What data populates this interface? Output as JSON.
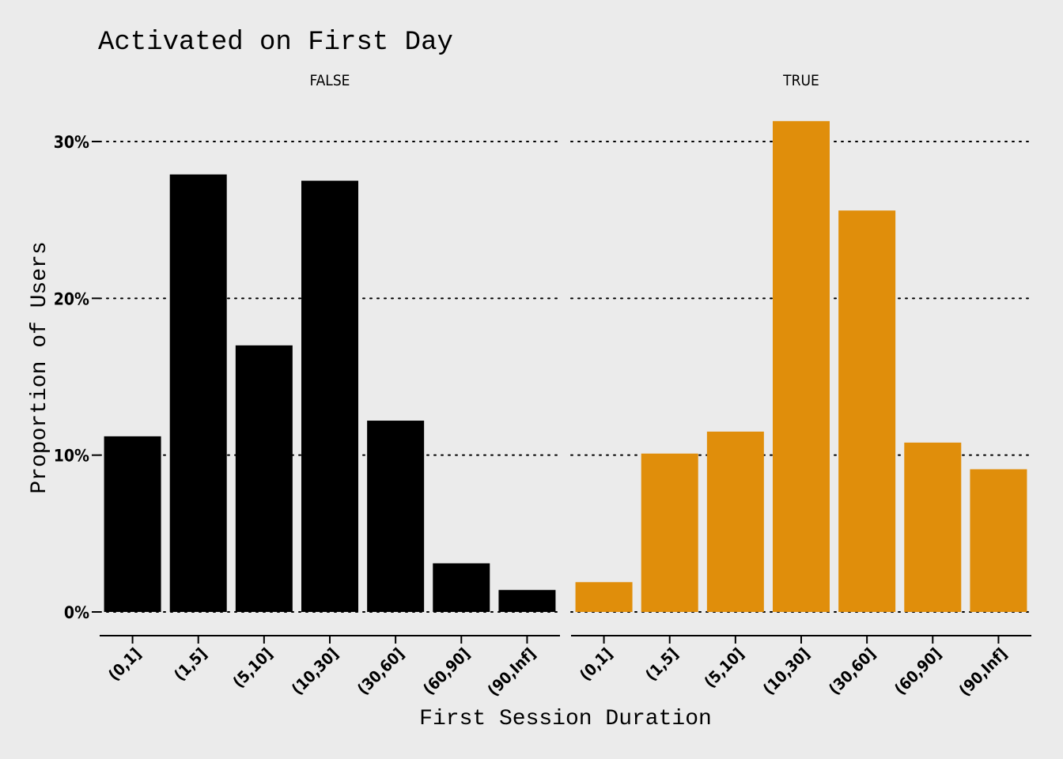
{
  "chart_data": {
    "type": "bar",
    "title": "Activated on First Day",
    "xlabel": "First Session Duration",
    "ylabel": "Proportion of Users",
    "ylim": [
      0,
      0.315
    ],
    "yticks": [
      0,
      0.1,
      0.2,
      0.3
    ],
    "ytick_labels": [
      "0%",
      "10%",
      "20%",
      "30%"
    ],
    "grid": "horizontal-dotted",
    "categories": [
      "(0,1]",
      "(1,5]",
      "(5,10]",
      "(10,30]",
      "(30,60]",
      "(60,90]",
      "(90,Inf]"
    ],
    "panels": [
      {
        "label": "FALSE",
        "color": "#000000",
        "values": [
          0.112,
          0.279,
          0.17,
          0.275,
          0.122,
          0.031,
          0.014
        ]
      },
      {
        "label": "TRUE",
        "color": "#e08e0b",
        "values": [
          0.019,
          0.101,
          0.115,
          0.313,
          0.256,
          0.108,
          0.091
        ]
      }
    ]
  }
}
